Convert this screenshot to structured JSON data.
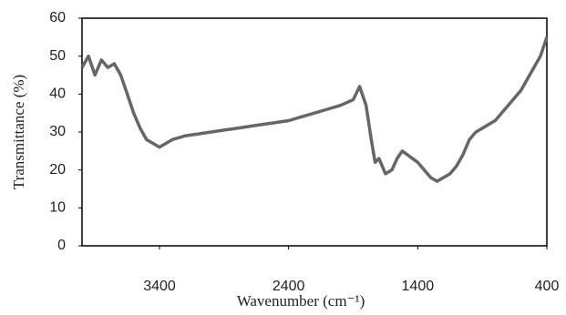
{
  "chart_data": {
    "type": "line",
    "xlabel": "Wavenumber (cm⁻¹)",
    "ylabel": "Transmittance (%)",
    "x": [
      4000,
      3950,
      3900,
      3850,
      3800,
      3750,
      3700,
      3650,
      3600,
      3550,
      3500,
      3450,
      3400,
      3350,
      3300,
      3200,
      3100,
      3000,
      2900,
      2800,
      2700,
      2600,
      2500,
      2400,
      2300,
      2200,
      2100,
      2000,
      1900,
      1850,
      1800,
      1760,
      1730,
      1700,
      1650,
      1600,
      1560,
      1520,
      1480,
      1440,
      1400,
      1350,
      1300,
      1250,
      1200,
      1150,
      1100,
      1050,
      1000,
      950,
      900,
      850,
      800,
      750,
      700,
      650,
      600,
      550,
      500,
      450,
      400
    ],
    "series": [
      {
        "name": "Transmittance",
        "color": "#666666",
        "values": [
          47,
          50,
          45,
          49,
          47,
          48,
          45,
          40,
          35,
          31,
          28,
          27,
          26,
          27,
          28,
          29,
          29.5,
          30,
          30.5,
          31,
          31.5,
          32,
          32.5,
          33,
          34,
          35,
          36,
          37,
          38.5,
          42,
          37,
          28,
          22,
          23,
          19,
          20,
          23,
          25,
          24,
          23,
          22,
          20,
          18,
          17,
          18,
          19,
          21,
          24,
          28,
          30,
          31,
          32,
          33,
          35,
          37,
          39,
          41,
          44,
          47,
          50,
          55
        ]
      }
    ],
    "xlim": [
      4000,
      400
    ],
    "xticks": [
      3400,
      2400,
      1400,
      400
    ],
    "ylim": [
      0,
      60
    ],
    "yticks": [
      0,
      10,
      20,
      30,
      40,
      50,
      60
    ],
    "grid": false
  }
}
